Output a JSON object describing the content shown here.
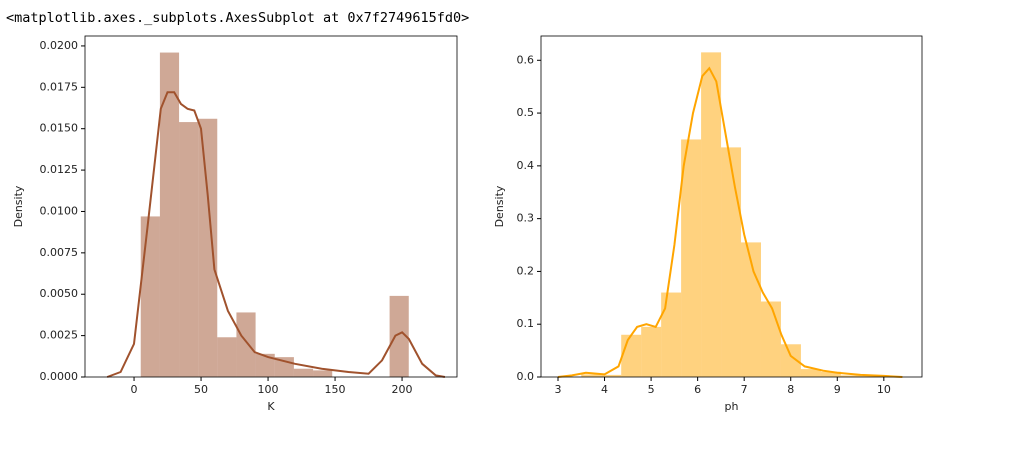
{
  "output_text": "<matplotlib.axes._subplots.AxesSubplot at 0x7f2749615fd0>",
  "chart_data": [
    {
      "type": "histogram",
      "xlabel": "K",
      "ylabel": "Density",
      "color": "#a0522d",
      "bins": [
        5,
        19.3,
        33.6,
        47.9,
        62.1,
        76.4,
        90.7,
        105,
        119.3,
        133.6,
        147.9,
        162.1,
        176.4,
        190.7,
        205
      ],
      "values": [
        0.0097,
        0.0196,
        0.0154,
        0.0156,
        0.0024,
        0.0039,
        0.0014,
        0.0012,
        0.0005,
        0.0004,
        0,
        0,
        0,
        0.0049
      ],
      "kde_x": [
        -20,
        -10,
        0,
        10,
        20,
        25,
        30,
        35,
        40,
        45,
        50,
        55,
        60,
        70,
        80,
        90,
        100,
        120,
        140,
        160,
        175,
        185,
        195,
        200,
        205,
        215,
        225,
        232
      ],
      "kde_y": [
        0,
        0.0003,
        0.002,
        0.009,
        0.0162,
        0.0172,
        0.0172,
        0.0165,
        0.0162,
        0.0161,
        0.015,
        0.011,
        0.0065,
        0.004,
        0.0025,
        0.0015,
        0.0012,
        0.0008,
        0.0005,
        0.0003,
        0.0002,
        0.001,
        0.0025,
        0.0027,
        0.0023,
        0.0008,
        0.0001,
        0
      ],
      "xlim": [
        -36.6,
        241
      ],
      "ylim": [
        0,
        0.0206
      ],
      "xticks": [
        0,
        50,
        100,
        150,
        200
      ],
      "yticks": [
        {
          "value": 0,
          "label": "0.0000"
        },
        {
          "value": 0.0025,
          "label": "0.0025"
        },
        {
          "value": 0.005,
          "label": "0.0050"
        },
        {
          "value": 0.0075,
          "label": "0.0075"
        },
        {
          "value": 0.01,
          "label": "0.0100"
        },
        {
          "value": 0.0125,
          "label": "0.0125"
        },
        {
          "value": 0.015,
          "label": "0.0150"
        },
        {
          "value": 0.0175,
          "label": "0.0175"
        },
        {
          "value": 0.02,
          "label": "0.0200"
        }
      ]
    },
    {
      "type": "histogram",
      "xlabel": "ph",
      "ylabel": "Density",
      "color": "#ffa500",
      "bins": [
        3.5,
        3.929,
        4.358,
        4.787,
        5.216,
        5.645,
        6.074,
        6.503,
        6.932,
        7.361,
        7.79,
        8.219,
        8.648,
        9.077,
        9.506,
        9.935
      ],
      "values": [
        0.005,
        0.004,
        0.08,
        0.095,
        0.16,
        0.45,
        0.615,
        0.435,
        0.255,
        0.143,
        0.062,
        0.015,
        0.01,
        0.003,
        0.002
      ],
      "kde_x": [
        3.0,
        3.3,
        3.6,
        4.0,
        4.3,
        4.5,
        4.7,
        4.9,
        5.1,
        5.3,
        5.5,
        5.7,
        5.9,
        6.1,
        6.25,
        6.4,
        6.6,
        6.8,
        7.0,
        7.2,
        7.4,
        7.6,
        7.8,
        8.0,
        8.3,
        8.7,
        9.0,
        9.5,
        10,
        10.4
      ],
      "kde_y": [
        0,
        0.003,
        0.008,
        0.005,
        0.02,
        0.07,
        0.095,
        0.1,
        0.095,
        0.13,
        0.25,
        0.4,
        0.5,
        0.57,
        0.585,
        0.56,
        0.46,
        0.36,
        0.27,
        0.2,
        0.16,
        0.13,
        0.08,
        0.04,
        0.02,
        0.012,
        0.008,
        0.004,
        0.002,
        0
      ],
      "xlim": [
        2.635,
        10.82
      ],
      "ylim": [
        0,
        0.646
      ],
      "xticks": [
        3,
        4,
        5,
        6,
        7,
        8,
        9,
        10
      ],
      "yticks": [
        {
          "value": 0,
          "label": "0.0"
        },
        0.1,
        0.2,
        0.3,
        0.4,
        0.5,
        0.6
      ]
    }
  ]
}
